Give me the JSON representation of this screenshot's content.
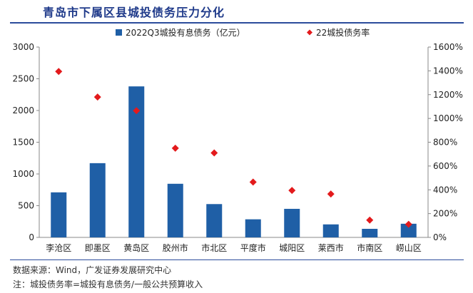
{
  "chart_data": {
    "type": "bar",
    "title": "青岛市下属区县城投债务压力分化",
    "categories": [
      "李沧区",
      "即墨区",
      "黄岛区",
      "胶州市",
      "市北区",
      "平度市",
      "城阳区",
      "莱西市",
      "市南区",
      "崂山区"
    ],
    "series": [
      {
        "name": "2022Q3城投有息债务（亿元）",
        "type": "bar",
        "axis": "left",
        "color": "#1f5fa6",
        "values": [
          710,
          1170,
          2380,
          845,
          525,
          285,
          450,
          205,
          135,
          215
        ]
      },
      {
        "name": "22城投债务率",
        "type": "scatter",
        "axis": "right",
        "marker": "diamond",
        "color": "#e31a1c",
        "values": [
          1395,
          1180,
          1065,
          750,
          710,
          465,
          395,
          365,
          145,
          110
        ]
      }
    ],
    "y_left": {
      "min": 0,
      "max": 3000,
      "ticks": [
        0,
        500,
        1000,
        1500,
        2000,
        2500,
        3000
      ]
    },
    "y_right": {
      "min": 0,
      "max": 1600,
      "ticks": [
        "0%",
        "200%",
        "400%",
        "600%",
        "800%",
        "1000%",
        "1200%",
        "1400%",
        "1600%"
      ]
    },
    "legend_position": "top",
    "grid": false
  },
  "notes": {
    "source": "数据来源：Wind，广发证券发展研究中心",
    "footnote": "注：城投债务率=城投有息债务/一般公共预算收入"
  }
}
